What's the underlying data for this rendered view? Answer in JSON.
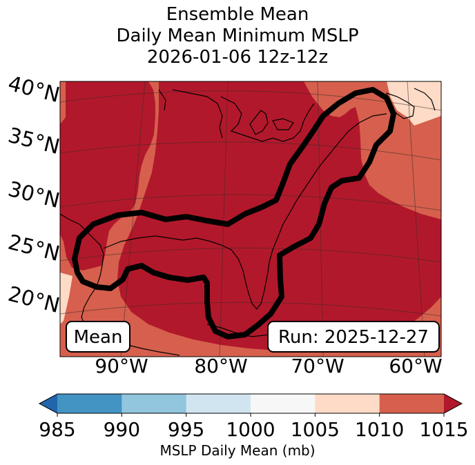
{
  "title": {
    "line1": "Ensemble Mean",
    "line2": "Daily Mean Minimum MSLP",
    "line3": "2026-01-06 12z-12z"
  },
  "map": {
    "lat_labels": [
      "40°N",
      "35°N",
      "30°N",
      "25°N",
      "20°N"
    ],
    "lon_labels": [
      "90°W",
      "80°W",
      "70°W",
      "60°W"
    ],
    "mean_label": "Mean",
    "run_label": "Run: 2025-12-27",
    "colors": {
      "c1005": "#fddbc7",
      "c1010": "#d6604d",
      "c1015": "#b2182b"
    }
  },
  "colorbar": {
    "ticks": [
      "985",
      "990",
      "995",
      "1000",
      "1005",
      "1010",
      "1015"
    ],
    "bins": [
      {
        "range": "<985",
        "color": "#2166ac"
      },
      {
        "range": "985-990",
        "color": "#4393c3"
      },
      {
        "range": "990-995",
        "color": "#92c5de"
      },
      {
        "range": "995-1000",
        "color": "#d1e5f0"
      },
      {
        "range": "1000-1005",
        "color": "#f7f7f7"
      },
      {
        "range": "1005-1010",
        "color": "#fddbc7"
      },
      {
        "range": "1010-1015",
        "color": "#d6604d"
      },
      {
        "range": ">1015",
        "color": "#b2182b"
      }
    ],
    "label": "MSLP Daily Mean (mb)"
  }
}
